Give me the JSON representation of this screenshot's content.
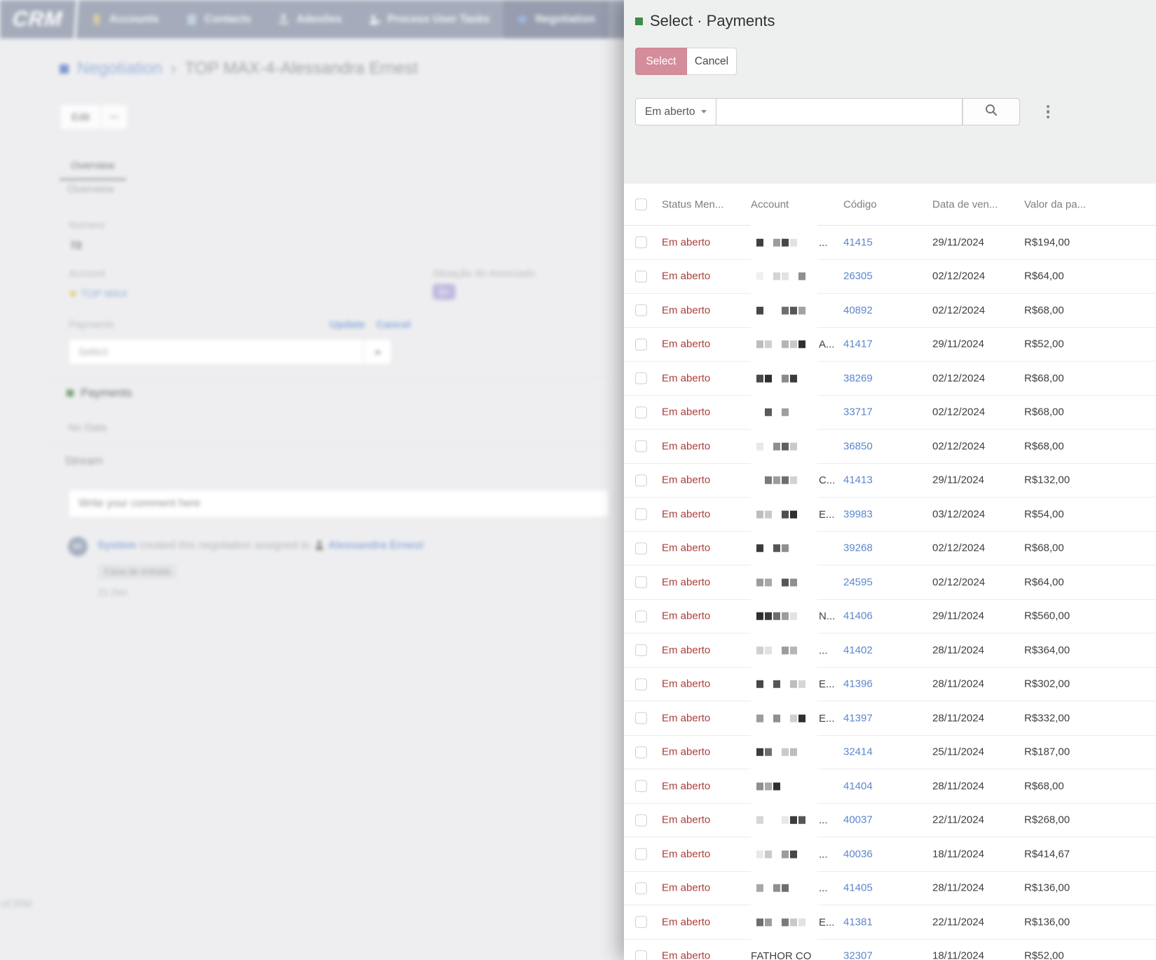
{
  "colors": {
    "status_red": "#a8403d",
    "link_blue": "#5b87cf",
    "select_pink": "#d48d9b",
    "title_green": "#3f8a44",
    "badge_purple": "#b2a8d8",
    "account_yellow": "#d9c469"
  },
  "background": {
    "navbar": {
      "brand": "CRM",
      "items": [
        {
          "label": "Accounts",
          "icon": "building-icon"
        },
        {
          "label": "Contacts",
          "icon": "address-book-icon"
        },
        {
          "label": "Adesões",
          "icon": "anchor-icon"
        },
        {
          "label": "Process User Tasks",
          "icon": "user-gear-icon"
        },
        {
          "label": "Negotiation",
          "icon": "negotiation-icon",
          "active": true
        }
      ]
    },
    "breadcrumb": {
      "entity": "Negotiation",
      "separator": "›",
      "record": "TOP MAX-4-Alessandra Ernest"
    },
    "actions": {
      "edit": "Edit",
      "more": "•••"
    },
    "tab": "Overview",
    "overview": {
      "title": "Overview",
      "numero_label": "Numero",
      "numero_value": "72",
      "account_label": "Account",
      "account_value": "TOP MAX",
      "situacao_label": "Situação do Associado",
      "situacao_badge": "3+",
      "payments_label": "Payments",
      "update": "Update",
      "cancel": "Cancel",
      "select_placeholder": "Select"
    },
    "payments": {
      "title": "Payments",
      "empty": "No Data"
    },
    "stream": {
      "title": "Stream",
      "comment_placeholder": "Write your comment here",
      "post": {
        "avatar": "SY",
        "user": "System",
        "action": "created this negotiation assigned to",
        "assignee": "Alessandra Ernest",
        "tag": "Caixa de entrada",
        "date": "21 Dec"
      }
    },
    "footer": "oCRM"
  },
  "modal": {
    "title": "Select · Payments",
    "select_button": "Select",
    "cancel_button": "Cancel",
    "filter_dropdown": "Em aberto",
    "table": {
      "headers": [
        "Status Men...",
        "Account",
        "Código",
        "Data de ven...",
        "Valor da pa..."
      ],
      "rows": [
        {
          "status": "Em aberto",
          "account": "",
          "account_suffix": "...",
          "account_blocks": [
            "#3f3f3f",
            "",
            "#9c9c9c",
            "#474747",
            "#e2e2e2"
          ],
          "code": "41415",
          "date": "29/11/2024",
          "value": "R$194,00"
        },
        {
          "status": "Em aberto",
          "account": "",
          "account_suffix": "",
          "account_blocks": [
            "#f0f0f0",
            "",
            "#d4d4d4",
            "#e2e2e2",
            "",
            "#8f8f8f"
          ],
          "code": "26305",
          "date": "02/12/2024",
          "value": "R$64,00"
        },
        {
          "status": "Em aberto",
          "account": "",
          "account_suffix": "",
          "account_blocks": [
            "#474747",
            "",
            "",
            "#6e6e6e",
            "#565656",
            "#a3a3a3"
          ],
          "code": "40892",
          "date": "02/12/2024",
          "value": "R$68,00"
        },
        {
          "status": "Em aberto",
          "account": "",
          "account_suffix": "A...",
          "account_blocks": [
            "#bdbdbd",
            "#cfcfcf",
            "",
            "#b5b5b5",
            "#c9c9c9",
            "#2f2f2f"
          ],
          "code": "41417",
          "date": "29/11/2024",
          "value": "R$52,00"
        },
        {
          "status": "Em aberto",
          "account": "",
          "account_suffix": "",
          "account_blocks": [
            "#4a4a4a",
            "#2f2f2f",
            "",
            "#8a8a8a",
            "#3b3b3b"
          ],
          "code": "38269",
          "date": "02/12/2024",
          "value": "R$68,00"
        },
        {
          "status": "Em aberto",
          "account": "",
          "account_suffix": "",
          "account_blocks": [
            "",
            "#5a5a5a",
            "",
            "#9e9e9e"
          ],
          "code": "33717",
          "date": "02/12/2024",
          "value": "R$68,00"
        },
        {
          "status": "Em aberto",
          "account": "",
          "account_suffix": "",
          "account_blocks": [
            "#e8e8e8",
            "",
            "#8f8f8f",
            "#606060",
            "#c9c9c9"
          ],
          "code": "36850",
          "date": "02/12/2024",
          "value": "R$68,00"
        },
        {
          "status": "Em aberto",
          "account": "",
          "account_suffix": "C...",
          "account_blocks": [
            "",
            "#7a7a7a",
            "#9c9c9c",
            "#6e6e6e",
            "#d2d2d2"
          ],
          "code": "41413",
          "date": "29/11/2024",
          "value": "R$132,00"
        },
        {
          "status": "Em aberto",
          "account": "",
          "account_suffix": "E...",
          "account_blocks": [
            "#bdbdbd",
            "#c9c9c9",
            "",
            "#4f4f4f",
            "#2f2f2f"
          ],
          "code": "39983",
          "date": "03/12/2024",
          "value": "R$54,00"
        },
        {
          "status": "Em aberto",
          "account": "",
          "account_suffix": "",
          "account_blocks": [
            "#3b3b3b",
            "",
            "#565656",
            "#8f8f8f"
          ],
          "code": "39268",
          "date": "02/12/2024",
          "value": "R$68,00"
        },
        {
          "status": "Em aberto",
          "account": "",
          "account_suffix": "",
          "account_blocks": [
            "#9c9c9c",
            "#a8a8a8",
            "",
            "#565656",
            "#8f8f8f"
          ],
          "code": "24595",
          "date": "02/12/2024",
          "value": "R$64,00"
        },
        {
          "status": "Em aberto",
          "account": "",
          "account_suffix": "N...",
          "account_blocks": [
            "#2f2f2f",
            "#3b3b3b",
            "#6e6e6e",
            "#9c9c9c",
            "#e2e2e2"
          ],
          "code": "41406",
          "date": "29/11/2024",
          "value": "R$560,00"
        },
        {
          "status": "Em aberto",
          "account": "",
          "account_suffix": "...",
          "account_blocks": [
            "#cfcfcf",
            "#e2e2e2",
            "",
            "#9c9c9c",
            "#b5b5b5"
          ],
          "code": "41402",
          "date": "28/11/2024",
          "value": "R$364,00"
        },
        {
          "status": "Em aberto",
          "account": "",
          "account_suffix": "E...",
          "account_blocks": [
            "#474747",
            "",
            "#565656",
            "",
            "#bdbdbd",
            "#d6d6d6"
          ],
          "code": "41396",
          "date": "28/11/2024",
          "value": "R$302,00"
        },
        {
          "status": "Em aberto",
          "account": "",
          "account_suffix": "E...",
          "account_blocks": [
            "#9c9c9c",
            "",
            "#8f8f8f",
            "",
            "#cfcfcf",
            "#2f2f2f"
          ],
          "code": "41397",
          "date": "28/11/2024",
          "value": "R$332,00"
        },
        {
          "status": "Em aberto",
          "account": "",
          "account_suffix": "",
          "account_blocks": [
            "#3b3b3b",
            "#6e6e6e",
            "",
            "#c9c9c9",
            "#bdbdbd"
          ],
          "code": "32414",
          "date": "25/11/2024",
          "value": "R$187,00"
        },
        {
          "status": "Em aberto",
          "account": "",
          "account_suffix": "",
          "account_blocks": [
            "#8f8f8f",
            "#a8a8a8",
            "#2f2f2f"
          ],
          "code": "41404",
          "date": "28/11/2024",
          "value": "R$68,00"
        },
        {
          "status": "Em aberto",
          "account": "",
          "account_suffix": "...",
          "account_blocks": [
            "#d6d6d6",
            "",
            "",
            "#e8e8e8",
            "#3b3b3b",
            "#565656"
          ],
          "code": "40037",
          "date": "22/11/2024",
          "value": "R$268,00"
        },
        {
          "status": "Em aberto",
          "account": "",
          "account_suffix": "...",
          "account_blocks": [
            "#e8e8e8",
            "#c9c9c9",
            "",
            "#9c9c9c",
            "#474747"
          ],
          "code": "40036",
          "date": "18/11/2024",
          "value": "R$414,67"
        },
        {
          "status": "Em aberto",
          "account": "",
          "account_suffix": "...",
          "account_blocks": [
            "#a8a8a8",
            "",
            "#8f8f8f",
            "#6e6e6e"
          ],
          "code": "41405",
          "date": "28/11/2024",
          "value": "R$136,00"
        },
        {
          "status": "Em aberto",
          "account": "",
          "account_suffix": "E...",
          "account_blocks": [
            "#6e6e6e",
            "#9c9c9c",
            "",
            "#7a7a7a",
            "#c9c9c9",
            "#e2e2e2"
          ],
          "code": "41381",
          "date": "22/11/2024",
          "value": "R$136,00"
        },
        {
          "status": "Em aberto",
          "account": "FATHOR CO",
          "account_suffix": "",
          "account_blocks": [],
          "code": "32307",
          "date": "18/11/2024",
          "value": "R$52,00"
        }
      ]
    }
  }
}
